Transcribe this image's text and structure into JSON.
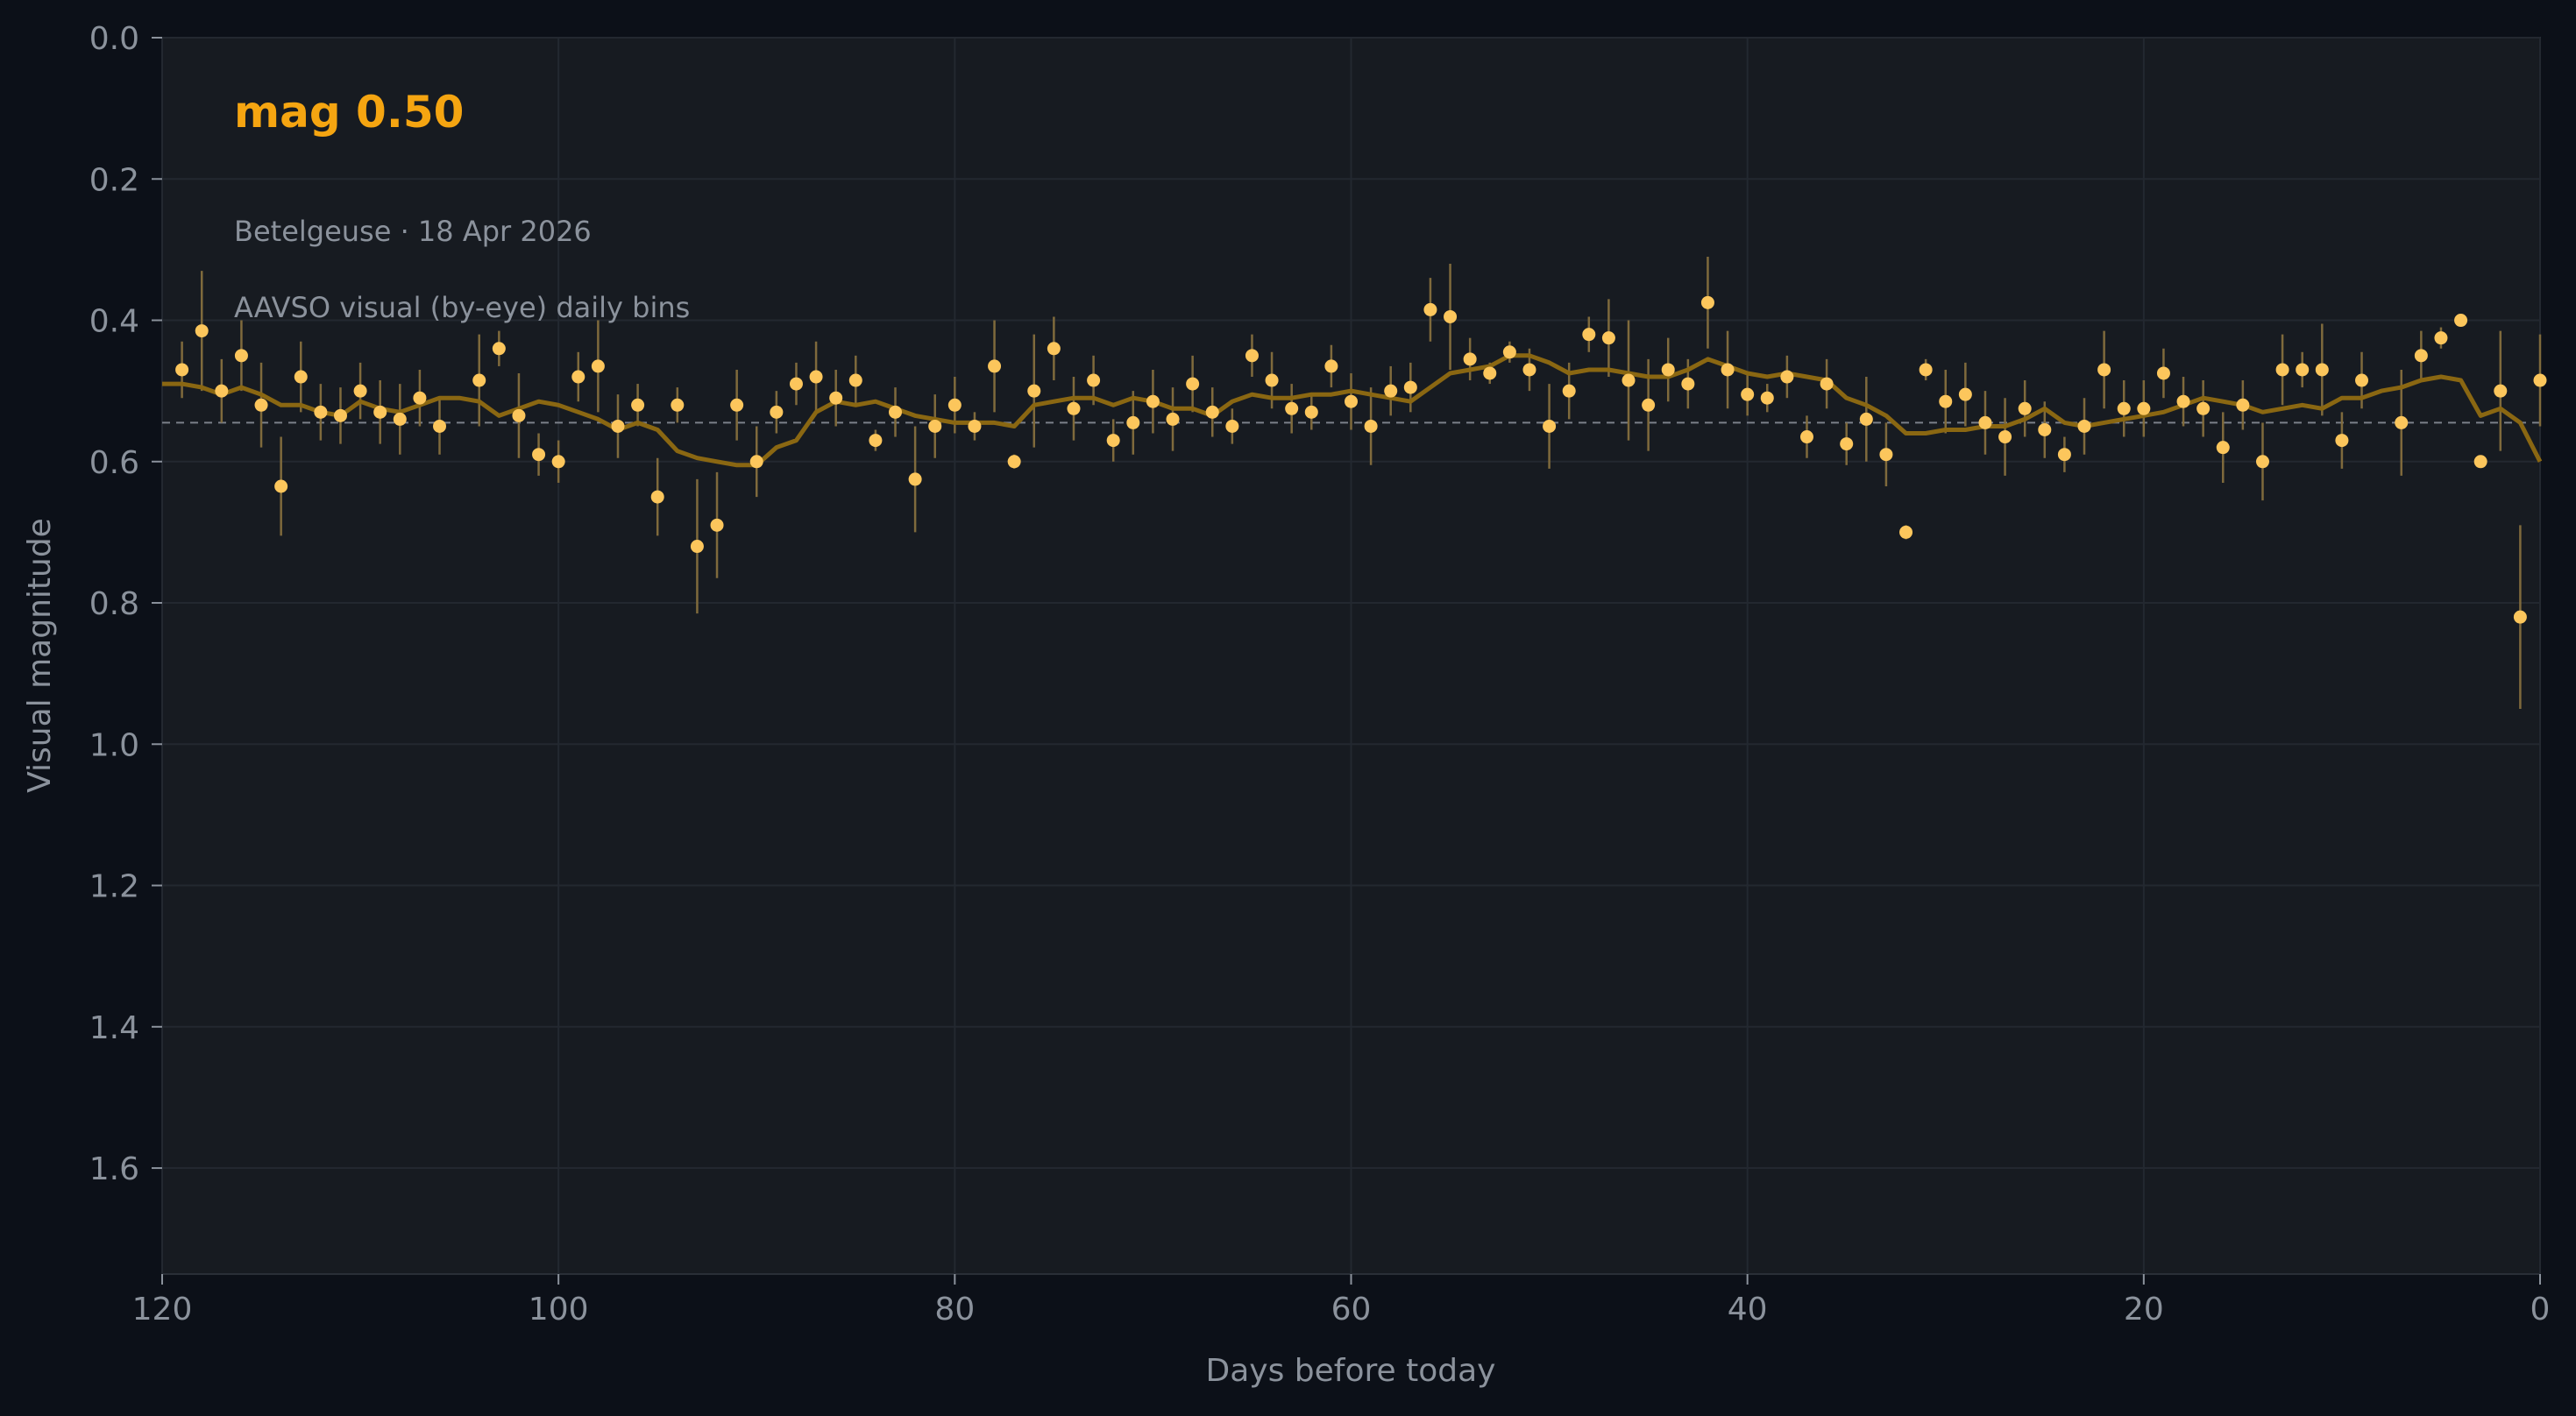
{
  "headline": "mag 0.50",
  "subtitle": "Betelgeuse · 18 Apr 2026",
  "note": "AAVSO visual (by-eye) daily bins",
  "colors": {
    "background": "#0c1018",
    "plot_bg": "#171b21",
    "headline": "#f5a511",
    "points": "#fcc65c",
    "errorbars": "#7f6a3c",
    "trend": "#8a6712",
    "mean_line": "#7b808a",
    "text": "#8b929c"
  },
  "chart_data": {
    "type": "scatter",
    "title": "",
    "xlabel": "Days before today",
    "ylabel": "Visual magnitude",
    "xlim": [
      120,
      0
    ],
    "ylim": [
      1.75,
      0.0
    ],
    "y_inverted": true,
    "xticks": [
      "120",
      "100",
      "80",
      "60",
      "40",
      "20",
      "0"
    ],
    "yticks": [
      "0.0",
      "0.2",
      "0.4",
      "0.6",
      "0.8",
      "1.0",
      "1.2",
      "1.4",
      "1.6"
    ],
    "grid": true,
    "mean_magnitude": 0.545,
    "series": [
      {
        "kind": "points_with_error",
        "x": [
          119,
          118,
          117,
          116,
          115,
          114,
          113,
          112,
          111,
          110,
          109,
          108,
          107,
          106,
          104,
          103,
          102,
          101,
          100,
          99,
          98,
          97,
          96,
          95,
          94,
          93,
          92,
          91,
          90,
          89,
          88,
          87,
          86,
          85,
          84,
          83,
          82,
          81,
          80,
          79,
          78,
          77,
          76,
          75,
          74,
          73,
          72,
          71,
          70,
          69,
          68,
          67,
          66,
          65,
          64,
          63,
          62,
          61,
          60,
          59,
          58,
          57,
          56,
          55,
          54,
          53,
          52,
          51,
          50,
          49,
          48,
          47,
          46,
          45,
          44,
          43,
          42,
          41,
          40,
          39,
          38,
          37,
          36,
          35,
          34,
          33,
          32,
          31,
          30,
          29,
          28,
          27,
          26,
          25,
          24,
          23,
          22,
          21,
          20,
          19,
          18,
          17,
          16,
          15,
          14,
          13,
          12,
          11,
          10,
          9,
          7,
          6,
          5,
          4,
          3,
          2,
          1,
          0
        ],
        "y": [
          0.47,
          0.415,
          0.5,
          0.45,
          0.52,
          0.635,
          0.48,
          0.53,
          0.535,
          0.5,
          0.53,
          0.54,
          0.51,
          0.55,
          0.485,
          0.44,
          0.535,
          0.59,
          0.6,
          0.48,
          0.465,
          0.55,
          0.52,
          0.65,
          0.52,
          0.72,
          0.69,
          0.52,
          0.6,
          0.53,
          0.49,
          0.48,
          0.51,
          0.485,
          0.57,
          0.53,
          0.625,
          0.55,
          0.52,
          0.55,
          0.465,
          0.6,
          0.5,
          0.44,
          0.525,
          0.485,
          0.57,
          0.545,
          0.515,
          0.54,
          0.49,
          0.53,
          0.55,
          0.45,
          0.485,
          0.525,
          0.53,
          0.465,
          0.515,
          0.55,
          0.5,
          0.495,
          0.385,
          0.395,
          0.455,
          0.475,
          0.445,
          0.47,
          0.55,
          0.5,
          0.42,
          0.425,
          0.485,
          0.52,
          0.47,
          0.49,
          0.375,
          0.47,
          0.505,
          0.51,
          0.48,
          0.565,
          0.49,
          0.575,
          0.54,
          0.59,
          0.7,
          0.47,
          0.515,
          0.505,
          0.545,
          0.565,
          0.525,
          0.555,
          0.59,
          0.55,
          0.47,
          0.525,
          0.525,
          0.475,
          0.515,
          0.525,
          0.58,
          0.52,
          0.6,
          0.47,
          0.47,
          0.47,
          0.57,
          0.485,
          0.545,
          0.45,
          0.425,
          0.4,
          0.6,
          0.5,
          0.82,
          0.485
        ],
        "err": [
          0.04,
          0.085,
          0.045,
          0.05,
          0.06,
          0.07,
          0.05,
          0.04,
          0.04,
          0.04,
          0.045,
          0.05,
          0.04,
          0.04,
          0.065,
          0.025,
          0.06,
          0.03,
          0.03,
          0.035,
          0.065,
          0.045,
          0.03,
          0.055,
          0.025,
          0.095,
          0.075,
          0.05,
          0.05,
          0.03,
          0.03,
          0.05,
          0.04,
          0.035,
          0.015,
          0.035,
          0.075,
          0.045,
          0.04,
          0.02,
          0.065,
          0.01,
          0.08,
          0.045,
          0.045,
          0.035,
          0.03,
          0.045,
          0.045,
          0.045,
          0.04,
          0.035,
          0.025,
          0.03,
          0.04,
          0.035,
          0.025,
          0.03,
          0.04,
          0.055,
          0.035,
          0.035,
          0.045,
          0.075,
          0.03,
          0.015,
          0.015,
          0.03,
          0.06,
          0.04,
          0.025,
          0.055,
          0.085,
          0.065,
          0.045,
          0.035,
          0.065,
          0.055,
          0.03,
          0.02,
          0.03,
          0.03,
          0.035,
          0.03,
          0.06,
          0.045,
          0.01,
          0.015,
          0.045,
          0.045,
          0.045,
          0.055,
          0.04,
          0.04,
          0.025,
          0.04,
          0.055,
          0.04,
          0.04,
          0.035,
          0.035,
          0.04,
          0.05,
          0.035,
          0.055,
          0.05,
          0.025,
          0.065,
          0.04,
          0.04,
          0.075,
          0.035,
          0.015,
          0.005,
          0.005,
          0.085,
          0.13,
          0.065
        ]
      },
      {
        "kind": "trend_line",
        "x": [
          120,
          119,
          118,
          117,
          116,
          115,
          114,
          113,
          112,
          111,
          110,
          109,
          108,
          107,
          106,
          105,
          104,
          103,
          102,
          101,
          100,
          99,
          98,
          97,
          96,
          95,
          94,
          93,
          92,
          91,
          90,
          89,
          88,
          87,
          86,
          85,
          84,
          83,
          82,
          81,
          80,
          79,
          78,
          77,
          76,
          75,
          74,
          73,
          72,
          71,
          70,
          69,
          68,
          67,
          66,
          65,
          64,
          63,
          62,
          61,
          60,
          59,
          58,
          57,
          56,
          55,
          54,
          53,
          52,
          51,
          50,
          49,
          48,
          47,
          46,
          45,
          44,
          43,
          42,
          41,
          40,
          39,
          38,
          37,
          36,
          35,
          34,
          33,
          32,
          31,
          30,
          29,
          28,
          27,
          26,
          25,
          24,
          23,
          22,
          21,
          20,
          19,
          18,
          17,
          16,
          15,
          14,
          13,
          12,
          11,
          10,
          9,
          8,
          7,
          6,
          5,
          4,
          3,
          2,
          1,
          0
        ],
        "y": [
          0.49,
          0.49,
          0.495,
          0.505,
          0.495,
          0.505,
          0.52,
          0.52,
          0.53,
          0.535,
          0.515,
          0.525,
          0.53,
          0.52,
          0.51,
          0.51,
          0.515,
          0.535,
          0.525,
          0.515,
          0.52,
          0.53,
          0.54,
          0.555,
          0.545,
          0.555,
          0.585,
          0.595,
          0.6,
          0.605,
          0.605,
          0.58,
          0.57,
          0.53,
          0.515,
          0.52,
          0.515,
          0.525,
          0.535,
          0.54,
          0.545,
          0.545,
          0.545,
          0.55,
          0.52,
          0.515,
          0.51,
          0.51,
          0.52,
          0.51,
          0.515,
          0.525,
          0.525,
          0.535,
          0.515,
          0.505,
          0.51,
          0.51,
          0.505,
          0.505,
          0.5,
          0.505,
          0.51,
          0.515,
          0.495,
          0.475,
          0.47,
          0.465,
          0.45,
          0.45,
          0.46,
          0.475,
          0.47,
          0.47,
          0.475,
          0.48,
          0.48,
          0.47,
          0.455,
          0.465,
          0.475,
          0.48,
          0.475,
          0.48,
          0.485,
          0.51,
          0.52,
          0.535,
          0.56,
          0.56,
          0.555,
          0.555,
          0.55,
          0.55,
          0.54,
          0.525,
          0.545,
          0.55,
          0.545,
          0.54,
          0.535,
          0.53,
          0.52,
          0.51,
          0.515,
          0.52,
          0.53,
          0.525,
          0.52,
          0.525,
          0.51,
          0.51,
          0.5,
          0.495,
          0.485,
          0.48,
          0.485,
          0.535,
          0.525,
          0.545,
          0.6
        ]
      }
    ]
  }
}
